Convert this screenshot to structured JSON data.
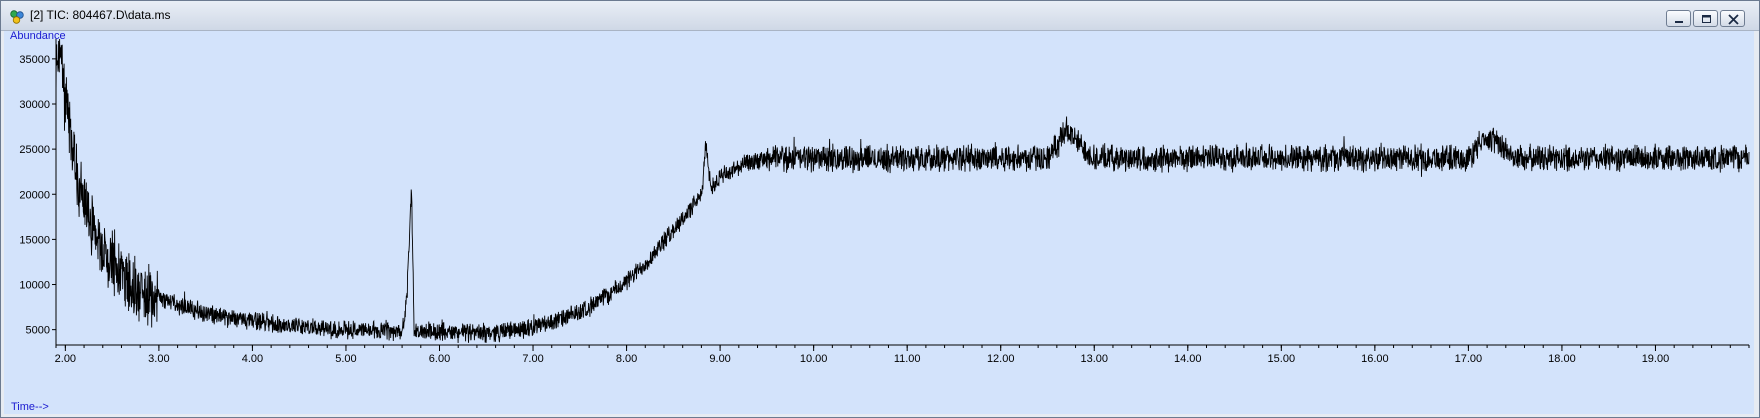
{
  "window": {
    "title": "[2] TIC: 804467.D\\data.ms",
    "controls": {
      "minimize": "minimize-icon",
      "restore": "restore-icon",
      "close": "close-icon"
    }
  },
  "colors": {
    "plot_bg": "#d3e3fb",
    "trace": "#000000",
    "axis_label": "#1a1ad0"
  },
  "chart_data": {
    "type": "line",
    "xlabel": "Time-->",
    "ylabel": "Abundance",
    "xlim": [
      1.9,
      20.0
    ],
    "ylim": [
      3300,
      37200
    ],
    "x_ticks": [
      2.0,
      3.0,
      4.0,
      5.0,
      6.0,
      7.0,
      8.0,
      9.0,
      10.0,
      11.0,
      12.0,
      13.0,
      14.0,
      15.0,
      16.0,
      17.0,
      18.0,
      19.0
    ],
    "x_tick_labels": [
      "2.00",
      "3.00",
      "4.00",
      "5.00",
      "6.00",
      "7.00",
      "8.00",
      "9.00",
      "10.00",
      "11.00",
      "12.00",
      "13.00",
      "14.00",
      "15.00",
      "16.00",
      "17.00",
      "18.00",
      "19.00"
    ],
    "y_ticks": [
      5000,
      10000,
      15000,
      20000,
      25000,
      30000,
      35000
    ],
    "y_tick_labels": [
      "5000",
      "10000",
      "15000",
      "20000",
      "25000",
      "30000",
      "35000"
    ],
    "grid": false,
    "legend": "none",
    "series": [
      {
        "x": [
          1.9,
          1.95,
          2.0,
          2.05,
          2.1,
          2.2,
          2.3,
          2.4,
          2.5,
          2.6,
          2.7,
          2.8,
          2.9,
          3.0,
          3.2,
          3.4,
          3.6,
          3.8,
          4.0,
          4.2,
          4.4,
          4.6,
          4.8,
          5.0,
          5.2,
          5.4,
          5.6,
          5.65,
          5.7,
          5.73,
          5.8,
          6.0,
          6.2,
          6.4,
          6.6,
          6.8,
          7.0,
          7.2,
          7.4,
          7.6,
          7.8,
          8.0,
          8.2,
          8.4,
          8.6,
          8.8,
          8.85,
          8.9,
          9.0,
          9.2,
          9.4,
          9.6,
          10.0,
          10.5,
          11.0,
          11.5,
          12.0,
          12.5,
          12.7,
          13.0,
          13.5,
          14.0,
          14.5,
          15.0,
          15.5,
          16.0,
          16.5,
          17.0,
          17.2,
          17.5,
          18.0,
          18.5,
          19.0,
          19.5,
          19.9
        ],
        "y": [
          34000,
          36000,
          30000,
          27000,
          23000,
          19000,
          16000,
          14000,
          12500,
          11000,
          10000,
          9500,
          9000,
          8500,
          7800,
          7000,
          6500,
          6200,
          6000,
          5700,
          5500,
          5300,
          5100,
          5000,
          4900,
          4800,
          4700,
          8000,
          21000,
          4600,
          4800,
          4700,
          4700,
          4600,
          4700,
          5000,
          5300,
          5800,
          6500,
          7500,
          8800,
          10300,
          12300,
          14800,
          17300,
          19800,
          25500,
          20800,
          21800,
          23000,
          23700,
          24000,
          24000,
          24000,
          24000,
          24000,
          24000,
          24000,
          27000,
          24000,
          24000,
          24000,
          24000,
          24000,
          24000,
          24000,
          24000,
          24000,
          26500,
          24000,
          24000,
          24000,
          24000,
          24000,
          24000
        ]
      }
    ]
  }
}
